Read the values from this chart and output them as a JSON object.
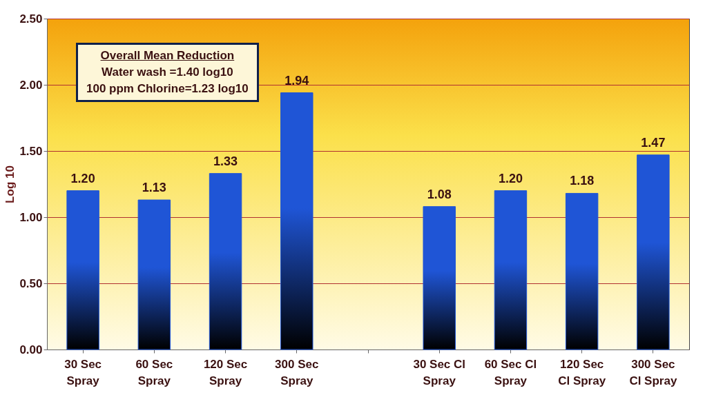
{
  "chart_data": {
    "type": "bar",
    "ylabel": "Log 10",
    "categories": [
      "30 Sec Spray",
      "60 Sec Spray",
      "120 Sec Spray",
      "300 Sec Spray",
      null,
      "30 Sec Cl Spray",
      "60 Sec Cl Spray",
      "120 Sec Cl Spray",
      "300 Sec Cl Spray"
    ],
    "values": [
      1.2,
      1.13,
      1.33,
      1.94,
      null,
      1.08,
      1.2,
      1.18,
      1.47
    ],
    "value_labels": [
      "1.20",
      "1.13",
      "1.33",
      "1.94",
      null,
      "1.08",
      "1.20",
      "1.18",
      "1.47"
    ],
    "color": "#1f55d6",
    "ylim": [
      0,
      2.5
    ],
    "yticks": [
      {
        "value": 0,
        "label": "0.00"
      },
      {
        "value": 0.5,
        "label": "0.50"
      },
      {
        "value": 1,
        "label": "1.00"
      },
      {
        "value": 1.5,
        "label": "1.50"
      },
      {
        "value": 2,
        "label": "2.00"
      },
      {
        "value": 2.5,
        "label": "2.50"
      }
    ],
    "grid": "y",
    "annotations": [
      "Overall Mean Reduction",
      "Water wash =1.40 log10",
      "100 ppm Chlorine=1.23 log10"
    ]
  }
}
